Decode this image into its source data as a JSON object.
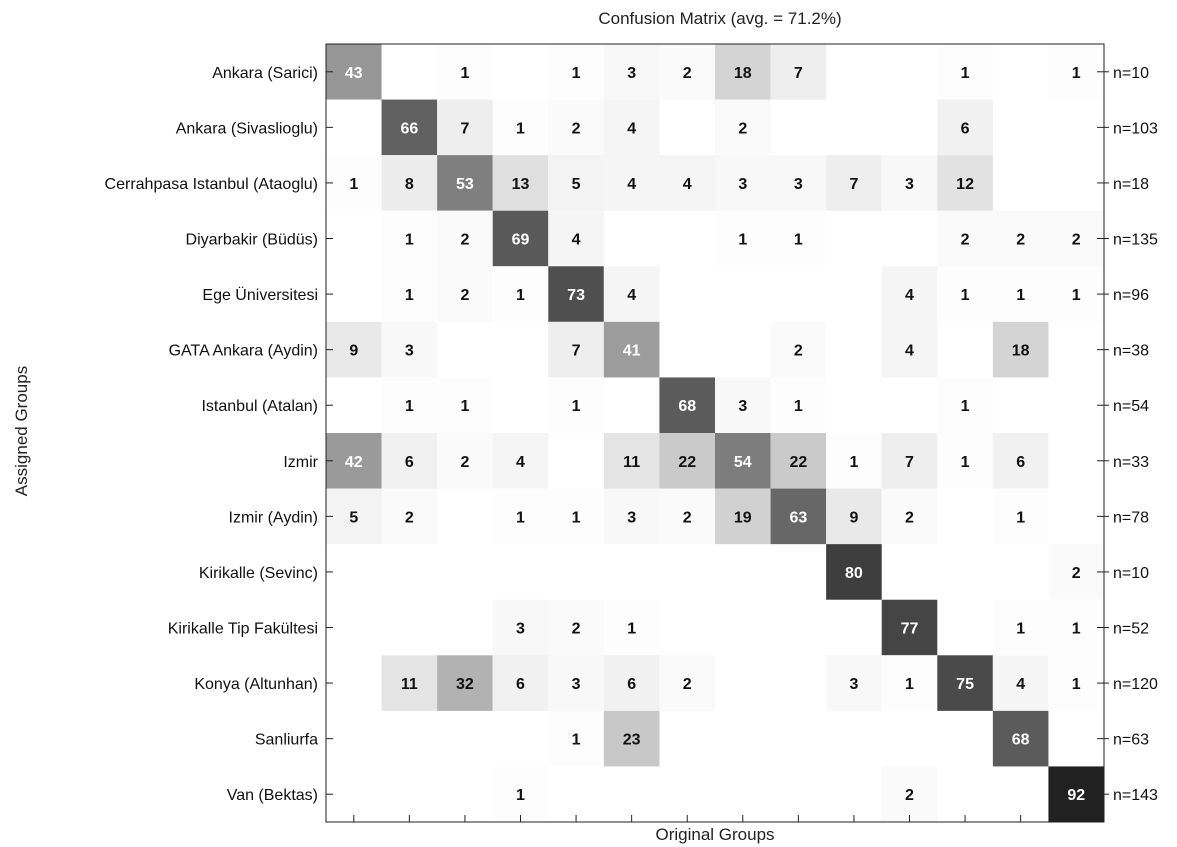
{
  "chart_data": {
    "type": "heatmap",
    "title": "Confusion Matrix (avg. = 71.2%)",
    "xlabel": "Original Groups",
    "ylabel": "Assigned Groups",
    "rows": [
      "Ankara (Sarici)",
      "Ankara (Sivaslioglu)",
      "Cerrahpasa Istanbul (Ataoglu)",
      "Diyarbakir (Büdüs)",
      "Ege Üniversitesi",
      "GATA Ankara (Aydin)",
      "Istanbul (Atalan)",
      "Izmir",
      "Izmir (Aydin)",
      "Kirikalle (Sevinc)",
      "Kirikalle Tip Fakültesi",
      "Konya (Altunhan)",
      "Sanliurfa",
      "Van (Bektas)"
    ],
    "n_labels": [
      "n=10",
      "n=103",
      "n=18",
      "n=135",
      "n=96",
      "n=38",
      "n=54",
      "n=33",
      "n=78",
      "n=10",
      "n=52",
      "n=120",
      "n=63",
      "n=143"
    ],
    "values": [
      [
        43,
        null,
        1,
        null,
        1,
        3,
        2,
        18,
        7,
        null,
        null,
        1,
        null,
        1
      ],
      [
        null,
        66,
        7,
        1,
        2,
        4,
        null,
        2,
        null,
        null,
        null,
        6,
        null,
        null
      ],
      [
        1,
        8,
        53,
        13,
        5,
        4,
        4,
        3,
        3,
        7,
        3,
        12,
        null,
        null
      ],
      [
        null,
        1,
        2,
        69,
        4,
        null,
        null,
        1,
        1,
        null,
        null,
        2,
        2,
        2
      ],
      [
        null,
        1,
        2,
        1,
        73,
        4,
        null,
        null,
        null,
        null,
        4,
        1,
        1,
        1
      ],
      [
        9,
        3,
        null,
        null,
        7,
        41,
        null,
        null,
        2,
        null,
        4,
        null,
        18,
        null
      ],
      [
        null,
        1,
        1,
        null,
        1,
        null,
        68,
        3,
        1,
        null,
        null,
        1,
        null,
        null
      ],
      [
        42,
        6,
        2,
        4,
        null,
        11,
        22,
        54,
        22,
        1,
        7,
        1,
        6,
        null
      ],
      [
        5,
        2,
        null,
        1,
        1,
        3,
        2,
        19,
        63,
        9,
        2,
        null,
        1,
        null
      ],
      [
        null,
        null,
        null,
        null,
        null,
        null,
        null,
        null,
        null,
        80,
        null,
        null,
        null,
        2
      ],
      [
        null,
        null,
        null,
        3,
        2,
        1,
        null,
        null,
        null,
        null,
        77,
        null,
        1,
        1
      ],
      [
        null,
        11,
        32,
        6,
        3,
        6,
        2,
        null,
        null,
        3,
        1,
        75,
        4,
        1
      ],
      [
        null,
        null,
        null,
        null,
        1,
        23,
        null,
        null,
        null,
        null,
        null,
        null,
        68,
        null
      ],
      [
        null,
        null,
        null,
        1,
        null,
        null,
        null,
        null,
        null,
        null,
        2,
        null,
        null,
        92
      ]
    ],
    "color_scale": {
      "low": "#ffffff",
      "high": "#1a1a1a"
    }
  }
}
